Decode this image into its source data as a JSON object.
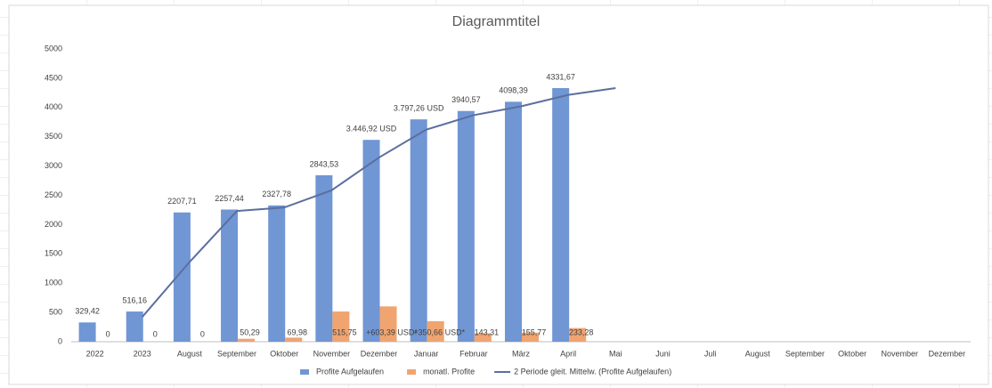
{
  "chart_data": {
    "type": "bar",
    "title": "Diagrammtitel",
    "categories": [
      "2022",
      "2023",
      "August",
      "September",
      "Oktober",
      "November",
      "Dezember",
      "Januar",
      "Februar",
      "März",
      "April",
      "Mai",
      "Juni",
      "Juli",
      "August",
      "September",
      "Oktober",
      "November",
      "Dezember"
    ],
    "series": [
      {
        "name": "Profite Aufgelaufen",
        "type": "bar",
        "color": "#7096d4",
        "values": [
          329.42,
          516.16,
          2207.71,
          2257.44,
          2327.78,
          2843.53,
          3446.92,
          3797.26,
          3940.57,
          4098.39,
          4331.67,
          null,
          null,
          null,
          null,
          null,
          null,
          null,
          null
        ],
        "value_labels": [
          "329,42",
          "516,16",
          "2207,71",
          "2257,44",
          "2327,78",
          "2843,53",
          "3.446,92 USD",
          "3.797,26 USD",
          "3940,57",
          "4098,39",
          "4331,67",
          null,
          null,
          null,
          null,
          null,
          null,
          null,
          null
        ]
      },
      {
        "name": "monatl. Profite",
        "type": "bar",
        "color": "#f0a470",
        "values": [
          0,
          0,
          0,
          50.29,
          69.98,
          515.75,
          603.39,
          350.66,
          143.31,
          155.77,
          233.28,
          null,
          null,
          null,
          null,
          null,
          null,
          null,
          null
        ],
        "value_labels": [
          "0",
          "0",
          "0",
          "50,29",
          "69,98",
          "515,75",
          "+603,39 USD*",
          "+350,66 USD*",
          "143,31",
          "155,77",
          "233,28",
          null,
          null,
          null,
          null,
          null,
          null,
          null,
          null
        ]
      },
      {
        "name": "2 Periode gleit. Mittelw. (Profite Aufgelaufen)",
        "type": "line",
        "color": "#5b6f9f",
        "values": [
          null,
          422.79,
          1361.94,
          2232.58,
          2292.61,
          2585.66,
          3145.23,
          3622.09,
          3868.92,
          4019.48,
          4215.03,
          4331.67,
          null,
          null,
          null,
          null,
          null,
          null,
          null
        ]
      }
    ],
    "ylim": [
      0,
      5000
    ],
    "yticks": [
      0,
      500,
      1000,
      1500,
      2000,
      2500,
      3000,
      3500,
      4000,
      4500,
      5000
    ],
    "grid": false,
    "legend": "bottom"
  }
}
